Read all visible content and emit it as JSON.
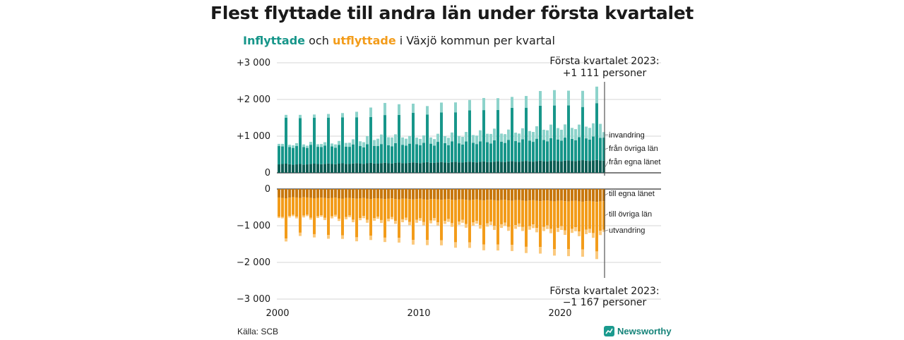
{
  "title": "Flest flyttade till andra län under första kvartalet",
  "subtitle": {
    "part1": "Inflyttade",
    "part2": " och ",
    "part3": "utflyttade",
    "part4": " i Växjö kommun per kvartal"
  },
  "source": "Källa: SCB",
  "brand": "Newsworthy",
  "colors": {
    "in_local": "#0e5f56",
    "in_other": "#17968a",
    "in_immigration": "#8dd3cb",
    "out_local": "#c8780e",
    "out_other": "#f39c1a",
    "out_emigration": "#fbc97d"
  },
  "annotations": {
    "top_line1": "Första kvartalet 2023:",
    "top_line2": "+1 111 personer",
    "bottom_line1": "Första kvartalet 2023:",
    "bottom_line2": "−1 167 personer"
  },
  "chart_data": {
    "type": "bar",
    "stacked": true,
    "x_unit": "kvartal",
    "start": "2000 Q1",
    "end": "2023 Q1",
    "x_ticks": [
      "2000",
      "2010",
      "2020"
    ],
    "y_ticks": [
      "+3 000",
      "+2 000",
      "+1 000",
      "0",
      "0",
      "−1 000",
      "−2 000",
      "−3 000"
    ],
    "ylim_in": [
      0,
      3000
    ],
    "ylim_out": [
      -3000,
      0
    ],
    "series": [
      {
        "name": "från egna länet",
        "group": "in",
        "values": [
          230,
          240,
          250,
          235,
          220,
          230,
          240,
          225,
          230,
          245,
          250,
          240,
          235,
          245,
          255,
          240,
          235,
          250,
          260,
          245,
          240,
          255,
          265,
          250,
          245,
          260,
          270,
          255,
          250,
          265,
          275,
          260,
          255,
          270,
          280,
          265,
          260,
          275,
          285,
          270,
          265,
          280,
          290,
          275,
          270,
          285,
          295,
          280,
          275,
          290,
          300,
          285,
          280,
          295,
          305,
          290,
          285,
          300,
          310,
          295,
          290,
          305,
          315,
          300,
          295,
          310,
          320,
          305,
          300,
          315,
          325,
          310,
          305,
          320,
          330,
          315,
          310,
          325,
          335,
          320,
          315,
          330,
          340,
          325,
          320,
          335,
          345,
          330,
          325,
          340,
          350,
          335,
          330
        ]
      },
      {
        "name": "från övriga län",
        "group": "in",
        "values": [
          500,
          480,
          1250,
          470,
          460,
          500,
          1250,
          480,
          450,
          520,
          1250,
          470,
          470,
          500,
          1250,
          480,
          450,
          510,
          1250,
          470,
          470,
          520,
          1250,
          480,
          450,
          520,
          1250,
          480,
          480,
          520,
          1300,
          490,
          470,
          540,
          1300,
          500,
          480,
          520,
          1350,
          510,
          490,
          540,
          1300,
          520,
          470,
          560,
          1350,
          530,
          480,
          570,
          1350,
          520,
          490,
          560,
          1400,
          530,
          500,
          560,
          1400,
          540,
          510,
          580,
          1400,
          550,
          520,
          590,
          1450,
          560,
          530,
          600,
          1450,
          570,
          540,
          610,
          1500,
          580,
          550,
          620,
          1500,
          590,
          560,
          630,
          1500,
          600,
          570,
          640,
          1450,
          610,
          580,
          650,
          1550,
          620,
          630
        ]
      },
      {
        "name": "invandring",
        "group": "in",
        "values": [
          60,
          70,
          80,
          60,
          70,
          80,
          90,
          70,
          60,
          80,
          90,
          70,
          80,
          90,
          100,
          80,
          90,
          110,
          120,
          100,
          110,
          140,
          150,
          130,
          140,
          220,
          260,
          160,
          200,
          260,
          330,
          220,
          240,
          240,
          290,
          200,
          190,
          210,
          250,
          180,
          170,
          200,
          230,
          170,
          180,
          220,
          270,
          190,
          200,
          240,
          270,
          200,
          210,
          260,
          280,
          210,
          230,
          300,
          330,
          230,
          260,
          320,
          320,
          220,
          240,
          280,
          300,
          230,
          240,
          300,
          320,
          260,
          270,
          340,
          400,
          280,
          300,
          370,
          420,
          310,
          300,
          360,
          400,
          300,
          300,
          340,
          440,
          320,
          320,
          360,
          450,
          380,
          151
        ]
      },
      {
        "name": "till egna länet",
        "group": "out",
        "values": [
          -230,
          -240,
          -250,
          -235,
          -220,
          -230,
          -240,
          -225,
          -230,
          -245,
          -250,
          -240,
          -235,
          -245,
          -255,
          -240,
          -235,
          -250,
          -260,
          -245,
          -240,
          -255,
          -265,
          -250,
          -245,
          -260,
          -270,
          -255,
          -250,
          -265,
          -275,
          -260,
          -255,
          -270,
          -280,
          -265,
          -260,
          -275,
          -285,
          -270,
          -265,
          -280,
          -290,
          -275,
          -270,
          -285,
          -295,
          -280,
          -275,
          -290,
          -300,
          -285,
          -280,
          -295,
          -305,
          -290,
          -285,
          -300,
          -310,
          -295,
          -290,
          -305,
          -315,
          -300,
          -295,
          -310,
          -320,
          -305,
          -300,
          -315,
          -325,
          -310,
          -305,
          -320,
          -330,
          -315,
          -310,
          -325,
          -335,
          -320,
          -315,
          -330,
          -340,
          -325,
          -320,
          -335,
          -345,
          -330,
          -325,
          -340,
          -350,
          -335,
          -330
        ]
      },
      {
        "name": "till övriga län",
        "group": "out",
        "values": [
          -520,
          -520,
          -1100,
          -500,
          -480,
          -520,
          -950,
          -500,
          -470,
          -540,
          -980,
          -500,
          -480,
          -540,
          -1000,
          -500,
          -470,
          -560,
          -1000,
          -520,
          -480,
          -580,
          -1050,
          -540,
          -490,
          -580,
          -1000,
          -540,
          -500,
          -580,
          -1050,
          -550,
          -510,
          -600,
          -1050,
          -560,
          -520,
          -620,
          -1100,
          -570,
          -530,
          -620,
          -1100,
          -580,
          -520,
          -620,
          -1100,
          -590,
          -540,
          -640,
          -1150,
          -600,
          -560,
          -660,
          -1150,
          -620,
          -580,
          -680,
          -1200,
          -640,
          -600,
          -700,
          -1200,
          -660,
          -620,
          -720,
          -1200,
          -680,
          -640,
          -720,
          -1250,
          -700,
          -660,
          -740,
          -1250,
          -720,
          -680,
          -760,
          -1300,
          -740,
          -700,
          -800,
          -1300,
          -760,
          -720,
          -820,
          -1300,
          -780,
          -760,
          -860,
          -1350,
          -800,
          -780
        ]
      },
      {
        "name": "utvandring",
        "group": "out",
        "values": [
          -40,
          -40,
          -80,
          -40,
          -40,
          -50,
          -90,
          -50,
          -40,
          -50,
          -90,
          -50,
          -40,
          -60,
          -100,
          -60,
          -50,
          -60,
          -100,
          -60,
          -50,
          -70,
          -110,
          -60,
          -60,
          -80,
          -120,
          -70,
          -60,
          -80,
          -120,
          -70,
          -60,
          -80,
          -130,
          -80,
          -70,
          -90,
          -130,
          -80,
          -70,
          -90,
          -140,
          -80,
          -70,
          -90,
          -140,
          -80,
          -80,
          -100,
          -150,
          -90,
          -80,
          -100,
          -150,
          -90,
          -80,
          -100,
          -160,
          -90,
          -90,
          -110,
          -160,
          -100,
          -90,
          -110,
          -170,
          -100,
          -90,
          -110,
          -170,
          -100,
          -100,
          -120,
          -180,
          -110,
          -100,
          -120,
          -180,
          -110,
          -100,
          -120,
          -190,
          -110,
          -110,
          -130,
          -200,
          -120,
          -110,
          -130,
          -210,
          -120,
          -57
        ]
      }
    ]
  }
}
